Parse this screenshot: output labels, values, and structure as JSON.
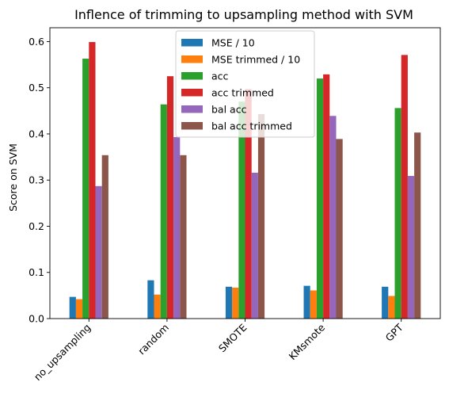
{
  "chart_data": {
    "type": "bar",
    "title": "Inflence of trimming to upsampling method with SVM",
    "xlabel": "",
    "ylabel": "Score on SVM",
    "ylim": [
      0,
      0.63
    ],
    "yticks": [
      "0.0",
      "0.1",
      "0.2",
      "0.3",
      "0.4",
      "0.5",
      "0.6"
    ],
    "categories": [
      "no_upsampling",
      "random",
      "SMOTE",
      "KMsmote",
      "GPT"
    ],
    "legend_position": "top-center",
    "grid": false,
    "series": [
      {
        "name": "MSE / 10",
        "color": "#1f77b4",
        "values": [
          0.047,
          0.083,
          0.069,
          0.071,
          0.069
        ]
      },
      {
        "name": "MSE trimmed / 10",
        "color": "#ff7f0e",
        "values": [
          0.042,
          0.052,
          0.067,
          0.061,
          0.049
        ]
      },
      {
        "name": "acc",
        "color": "#2ca02c",
        "values": [
          0.563,
          0.464,
          0.47,
          0.52,
          0.456
        ]
      },
      {
        "name": "acc trimmed",
        "color": "#d62728",
        "values": [
          0.599,
          0.525,
          0.497,
          0.529,
          0.571
        ]
      },
      {
        "name": "bal acc",
        "color": "#9467bd",
        "values": [
          0.287,
          0.393,
          0.316,
          0.439,
          0.309
        ]
      },
      {
        "name": "bal acc trimmed",
        "color": "#8c564b",
        "values": [
          0.354,
          0.354,
          0.443,
          0.389,
          0.403
        ]
      }
    ]
  }
}
